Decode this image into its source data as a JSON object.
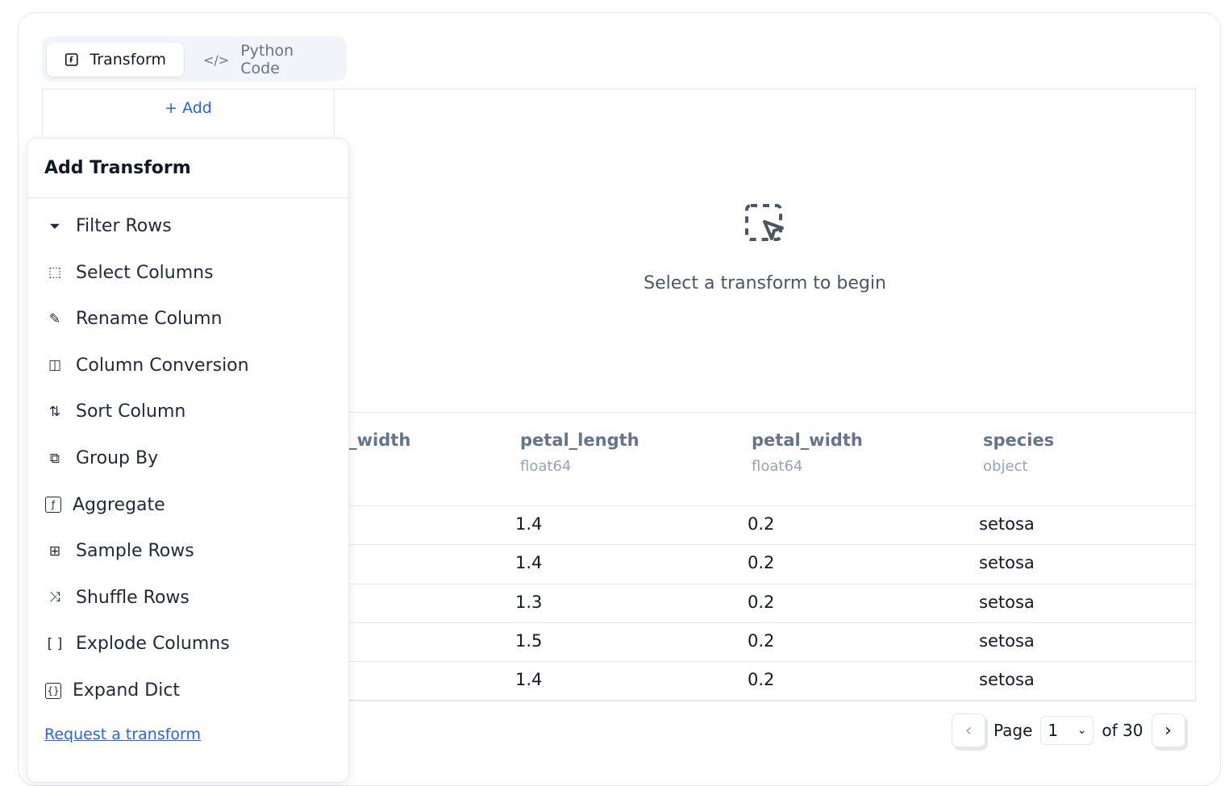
{
  "tabs": [
    {
      "label": "Transform",
      "icon": "function-square-icon"
    },
    {
      "label": "Python Code",
      "icon": "code-icon"
    }
  ],
  "add_label": "+  Add",
  "empty_state": {
    "text": "Select a transform to begin",
    "icon": "dashed-selection-cursor-icon"
  },
  "table": {
    "columns": [
      {
        "name": "sepal_width",
        "type": ""
      },
      {
        "name": "petal_length",
        "type": "float64"
      },
      {
        "name": "petal_width",
        "type": "float64"
      },
      {
        "name": "species",
        "type": "object"
      }
    ],
    "rows": [
      [
        "1.4",
        "0.2",
        "setosa"
      ],
      [
        "1.4",
        "0.2",
        "setosa"
      ],
      [
        "1.3",
        "0.2",
        "setosa"
      ],
      [
        "1.5",
        "0.2",
        "setosa"
      ],
      [
        "1.4",
        "0.2",
        "setosa"
      ]
    ]
  },
  "pagination": {
    "page_label": "Page",
    "current": "1",
    "of_label": "of 30"
  },
  "popup": {
    "title": "Add Transform",
    "items": [
      {
        "label": "Filter Rows",
        "icon": "filter-icon"
      },
      {
        "label": "Select Columns",
        "icon": "select-columns-icon"
      },
      {
        "label": "Rename Column",
        "icon": "pencil-icon"
      },
      {
        "label": "Column Conversion",
        "icon": "columns-icon"
      },
      {
        "label": "Sort Column",
        "icon": "sort-arrows-icon"
      },
      {
        "label": "Group By",
        "icon": "group-icon"
      },
      {
        "label": "Aggregate",
        "icon": "function-square-icon"
      },
      {
        "label": "Sample Rows",
        "icon": "sample-icon"
      },
      {
        "label": "Shuffle Rows",
        "icon": "shuffle-icon"
      },
      {
        "label": "Explode Columns",
        "icon": "brackets-icon"
      },
      {
        "label": "Expand Dict",
        "icon": "file-braces-icon"
      }
    ],
    "request_link": "Request a transform"
  }
}
